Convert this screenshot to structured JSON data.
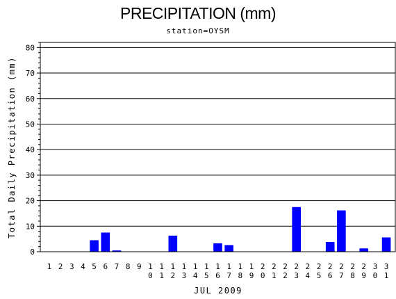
{
  "chart_data": {
    "type": "bar",
    "title": "PRECIPITATION (mm)",
    "subtitle": "station=OYSM",
    "xlabel": "JUL 2009",
    "ylabel": "Total Daily Precipitation (mm)",
    "ylim": [
      0,
      82
    ],
    "yticks": [
      0,
      10,
      20,
      30,
      40,
      50,
      60,
      70,
      80
    ],
    "grid": true,
    "bar_color": "#0000ff",
    "categories": [
      "1",
      "2",
      "3",
      "4",
      "5",
      "6",
      "7",
      "8",
      "9",
      "10",
      "11",
      "12",
      "13",
      "14",
      "15",
      "16",
      "17",
      "18",
      "19",
      "20",
      "21",
      "22",
      "23",
      "24",
      "25",
      "26",
      "27",
      "28",
      "29",
      "30",
      "31"
    ],
    "values": [
      0,
      0,
      0,
      0,
      4.5,
      7.5,
      0.5,
      0,
      0,
      0,
      0,
      6.3,
      0,
      0,
      0,
      3.3,
      2.6,
      0,
      0,
      0,
      0,
      0,
      17.5,
      0,
      0,
      3.8,
      16.2,
      0,
      1.3,
      0,
      5.6
    ]
  }
}
